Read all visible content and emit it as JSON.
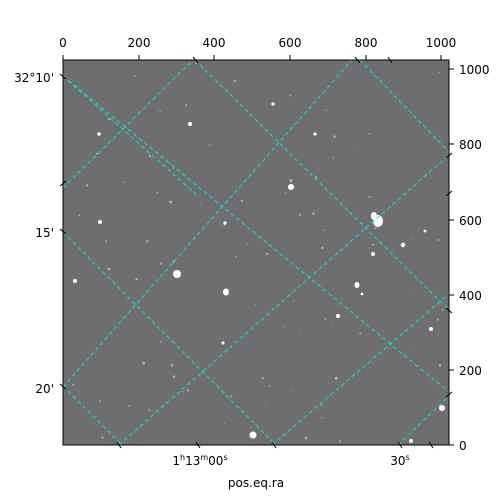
{
  "figure": {
    "x_axis_label": "pos.eq.ra",
    "top_ticks": [
      "0",
      "200",
      "400",
      "600",
      "800",
      "1000"
    ],
    "right_ticks": [
      "1000",
      "800",
      "600",
      "400",
      "200",
      "0"
    ],
    "dec_ticks": [
      "32°10'",
      "15'",
      "20'"
    ],
    "ra_ticks": [
      {
        "main": "1",
        "sup1": "h",
        "mid": "13",
        "sup2": "m",
        "end": "00",
        "sup3": "s"
      },
      {
        "main": "30",
        "sup1": "s"
      }
    ],
    "colors": {
      "image_background": "#6e6e6e",
      "grid": "#00e5e5",
      "stars": "#ffffff"
    }
  }
}
